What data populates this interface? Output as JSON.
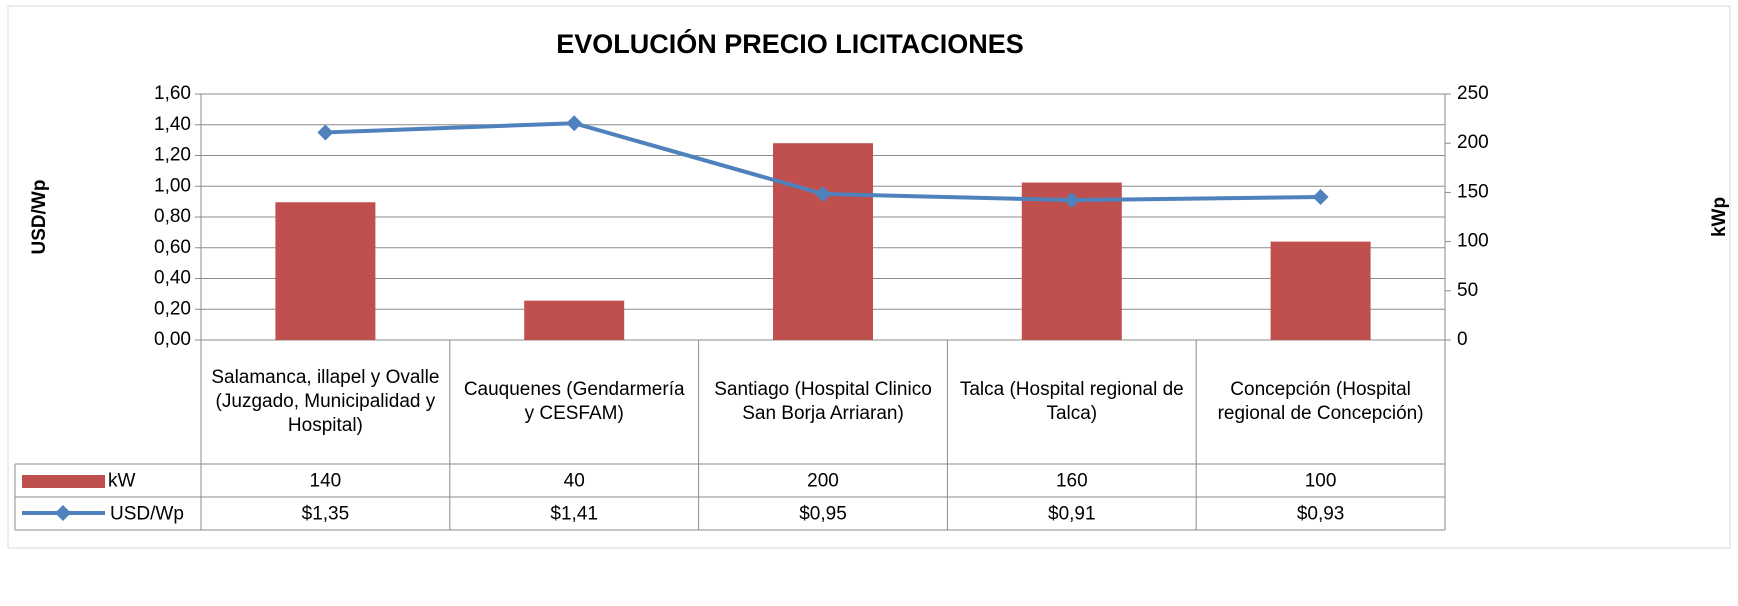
{
  "chart_data": {
    "type": "bar_line",
    "title": "EVOLUCIÓN PRECIO LICITACIONES",
    "y_label": "USD/Wp",
    "y2_label": "kWp",
    "categories": [
      "Salamanca, illapel y Ovalle (Juzgado, Municipalidad y Hospital)",
      "Cauquenes (Gendarmería y CESFAM)",
      "Santiago (Hospital Clinico San Borja Arriaran)",
      "Talca (Hospital regional de Talca)",
      "Concepción (Hospital regional de Concepción)"
    ],
    "series": [
      {
        "name": "kW",
        "type": "bar",
        "color": "#c0504d",
        "axis": "y2",
        "values": [
          140,
          40,
          200,
          160,
          100
        ]
      },
      {
        "name": "USD/Wp",
        "type": "line",
        "color": "#4f81bd",
        "axis": "y",
        "values": [
          1.35,
          1.41,
          0.95,
          0.91,
          0.93
        ],
        "value_labels": [
          "$1,35",
          "$1,41",
          "$0,95",
          "$0,91",
          "$0,93"
        ]
      }
    ],
    "ylim": [
      0,
      1.6
    ],
    "yticks": [
      {
        "value": 0,
        "label": "0,00"
      },
      {
        "value": 0.2,
        "label": "0,20"
      },
      {
        "value": 0.4,
        "label": "0,40"
      },
      {
        "value": 0.6,
        "label": "0,60"
      },
      {
        "value": 0.8,
        "label": "0,80"
      },
      {
        "value": 1.0,
        "label": "1,00"
      },
      {
        "value": 1.2,
        "label": "1,20"
      },
      {
        "value": 1.4,
        "label": "1,40"
      },
      {
        "value": 1.6,
        "label": "1,60"
      }
    ],
    "y2lim": [
      0,
      250
    ],
    "y2ticks": [
      0,
      50,
      100,
      150,
      200,
      250
    ],
    "grid": true
  }
}
